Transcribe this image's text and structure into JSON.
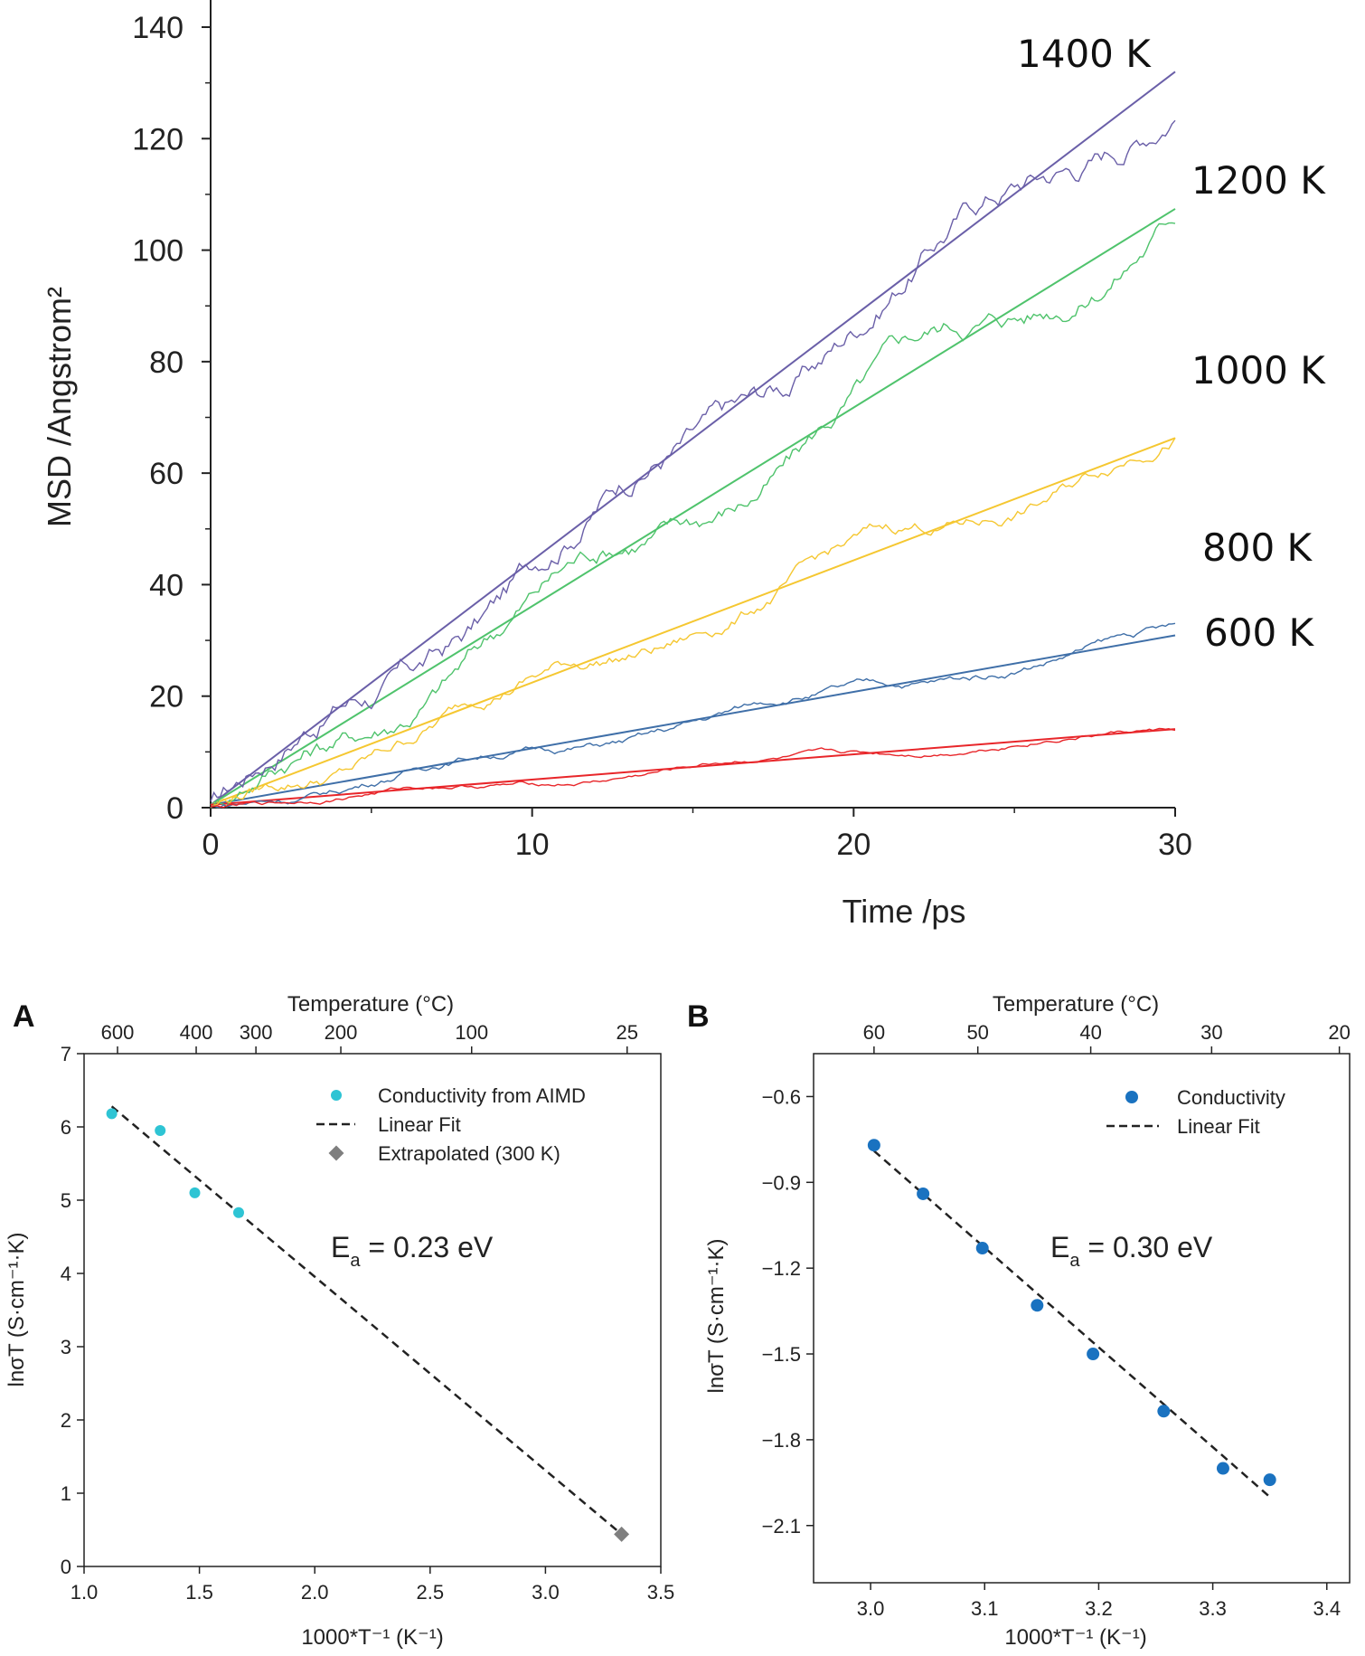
{
  "chart_data": [
    {
      "type": "line",
      "title": "",
      "xlabel": "Time /ps",
      "ylabel": "MSD /Angstrom²",
      "xlim": [
        0,
        30
      ],
      "ylim": [
        0,
        140
      ],
      "xticks": [
        0,
        10,
        20,
        30
      ],
      "yticks": [
        0,
        20,
        40,
        60,
        80,
        100,
        120,
        140
      ],
      "series": [
        {
          "name": "1400 K",
          "color": "#6a5fa8",
          "fit_slope": 4.4,
          "fit_end": 132
        },
        {
          "name": "1200 K",
          "color": "#4fc36c",
          "fit_slope": 3.58,
          "fit_end": 107.4
        },
        {
          "name": "1000 K",
          "color": "#f5c731",
          "fit_slope": 2.21,
          "fit_end": 66.3
        },
        {
          "name": "800 K",
          "color": "#3f6fa8",
          "fit_slope": 1.03,
          "fit_end": 30.9
        },
        {
          "name": "600 K",
          "color": "#e8262a",
          "fit_slope": 0.47,
          "fit_end": 14.1
        }
      ]
    },
    {
      "type": "scatter",
      "panel": "A",
      "title": "Temperature (°C)",
      "xlabel": "1000*T⁻¹ (K⁻¹)",
      "ylabel": "lnσT (S·cm⁻¹·K)",
      "xlim": [
        1.0,
        3.5
      ],
      "ylim": [
        0,
        7
      ],
      "xticks": [
        "1.0",
        "1.5",
        "2.0",
        "2.5",
        "3.0",
        "3.5"
      ],
      "yticks": [
        "0",
        "1",
        "2",
        "3",
        "4",
        "5",
        "6",
        "7"
      ],
      "top_ticks": [
        {
          "label": "600",
          "x": 1.145
        },
        {
          "label": "400",
          "x": 1.486
        },
        {
          "label": "300",
          "x": 1.745
        },
        {
          "label": "200",
          "x": 2.113
        },
        {
          "label": "100",
          "x": 2.68
        },
        {
          "label": "25",
          "x": 3.354
        }
      ],
      "series": [
        {
          "name": "Conductivity from AIMD",
          "color": "#2ec4d4",
          "points": [
            [
              1.12,
              6.18
            ],
            [
              1.33,
              5.95
            ],
            [
              1.48,
              5.1
            ],
            [
              1.67,
              4.83
            ]
          ]
        },
        {
          "name": "Linear Fit",
          "color": "#222222",
          "line": [
            [
              1.12,
              6.28
            ],
            [
              3.33,
              0.44
            ]
          ]
        },
        {
          "name": "Extrapolated (300 K)",
          "color": "#7f7f7f",
          "points": [
            [
              3.33,
              0.44
            ]
          ]
        }
      ],
      "annotation": {
        "main": "E",
        "sub": "a",
        "rest": " = 0.23 eV"
      }
    },
    {
      "type": "scatter",
      "panel": "B",
      "title": "Temperature (°C)",
      "xlabel": "1000*T⁻¹ (K⁻¹)",
      "ylabel": "lnσT (S·cm⁻¹·K)",
      "xlim": [
        2.95,
        3.42
      ],
      "ylim": [
        -2.3,
        -0.45
      ],
      "xticks": [
        "3.0",
        "3.1",
        "3.2",
        "3.3",
        "3.4"
      ],
      "yticks": [
        "-0.6",
        "-0.9",
        "-1.2",
        "-1.5",
        "-1.8",
        "-2.1"
      ],
      "top_ticks": [
        {
          "label": "60",
          "x": 3.003
        },
        {
          "label": "50",
          "x": 3.094
        },
        {
          "label": "40",
          "x": 3.193
        },
        {
          "label": "30",
          "x": 3.299
        },
        {
          "label": "20",
          "x": 3.411
        }
      ],
      "series": [
        {
          "name": "Conductivity",
          "color": "#1a72c0",
          "points": [
            [
              3.003,
              -0.77
            ],
            [
              3.046,
              -0.94
            ],
            [
              3.098,
              -1.13
            ],
            [
              3.146,
              -1.33
            ],
            [
              3.195,
              -1.5
            ],
            [
              3.257,
              -1.7
            ],
            [
              3.309,
              -1.9
            ],
            [
              3.35,
              -1.94
            ]
          ]
        },
        {
          "name": "Linear Fit",
          "color": "#222222",
          "line": [
            [
              3.003,
              -0.79
            ],
            [
              3.35,
              -2.0
            ]
          ]
        }
      ],
      "annotation": {
        "main": "E",
        "sub": "a",
        "rest": " = 0.30 eV"
      }
    }
  ],
  "labels": {
    "panel_a": "A",
    "panel_b": "B"
  }
}
